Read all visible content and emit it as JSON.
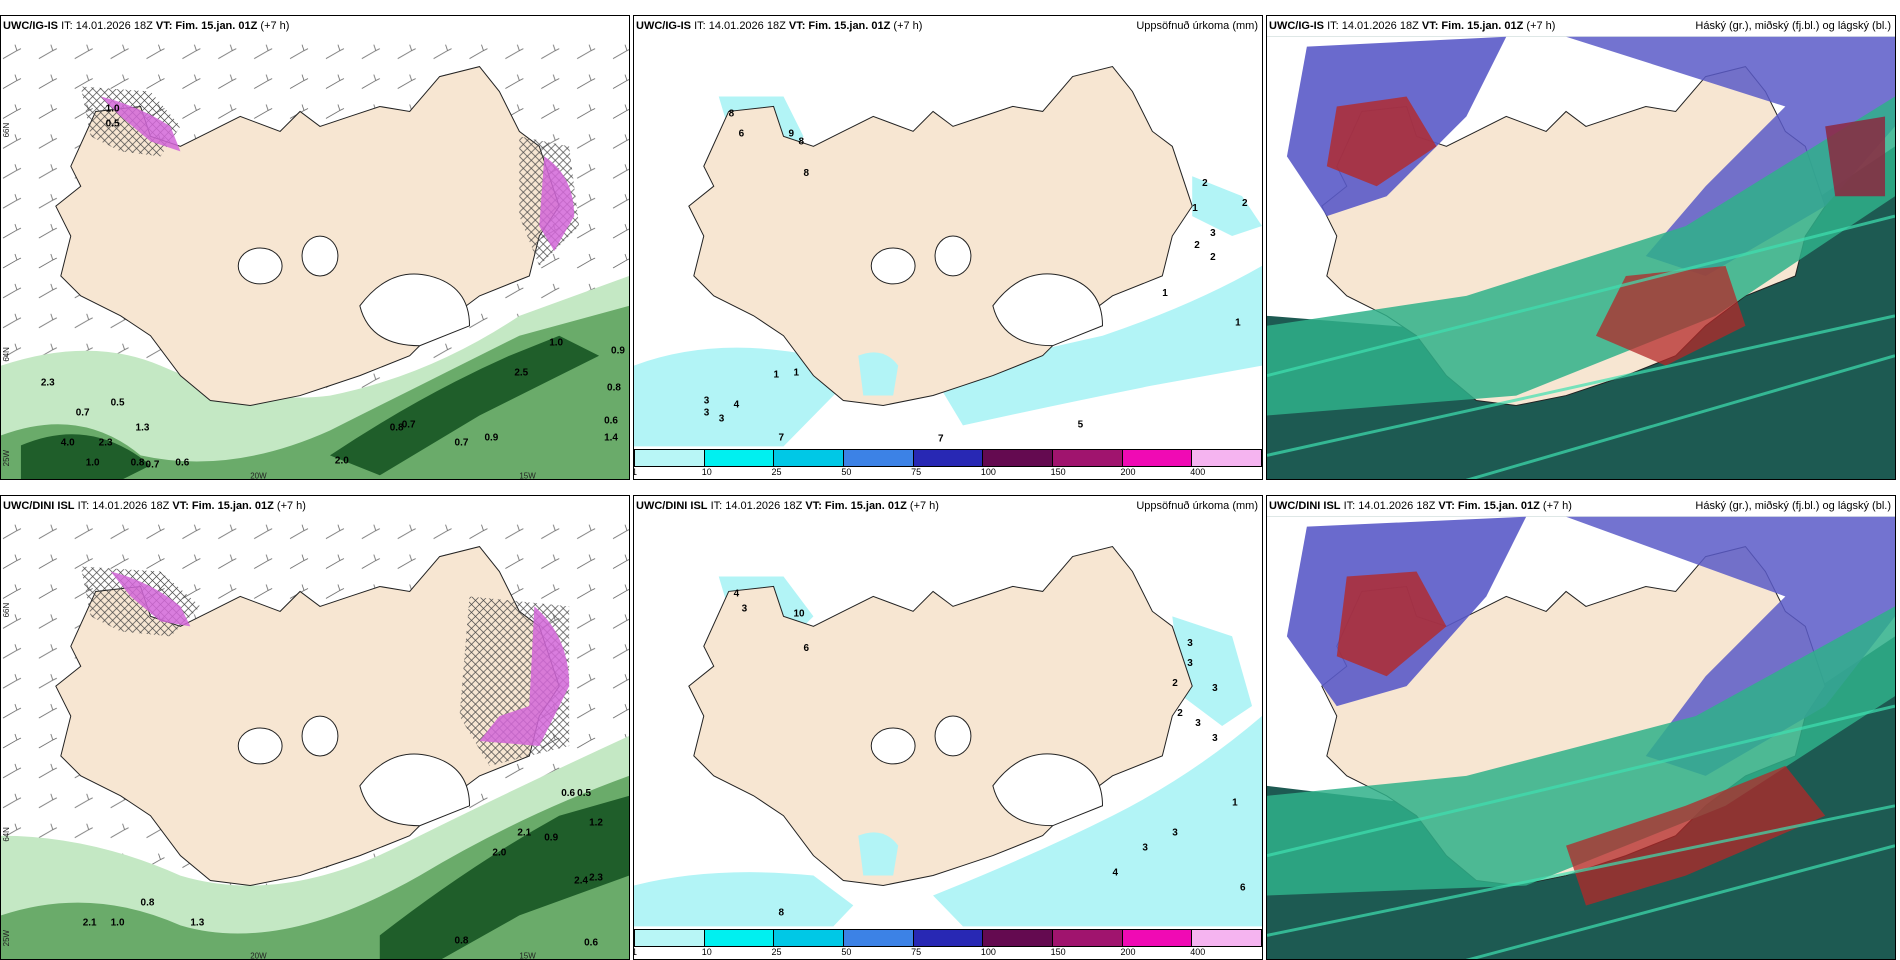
{
  "panels": [
    {
      "model": "UWC/IG-IS",
      "it": "IT: 14.01.2026 18Z",
      "vt_label": "VT:",
      "vt": "Fim. 15.jan. 01Z",
      "lead": "(+7 h)",
      "right": ""
    },
    {
      "model": "UWC/IG-IS",
      "it": "IT: 14.01.2026 18Z",
      "vt_label": "VT:",
      "vt": "Fim. 15.jan. 01Z",
      "lead": "(+7 h)",
      "right": "Uppsöfnuð úrkoma (mm)"
    },
    {
      "model": "UWC/IG-IS",
      "it": "IT: 14.01.2026 18Z",
      "vt_label": "VT:",
      "vt": "Fim. 15.jan. 01Z",
      "lead": "(+7 h)",
      "right": "Háský (gr.), miðský (fj.bl.) og lágský (bl.)"
    },
    {
      "model": "UWC/DINI ISL",
      "it": "IT: 14.01.2026 18Z",
      "vt_label": "VT:",
      "vt": "Fim. 15.jan. 01Z",
      "lead": "(+7 h)",
      "right": ""
    },
    {
      "model": "UWC/DINI ISL",
      "it": "IT: 14.01.2026 18Z",
      "vt_label": "VT:",
      "vt": "Fim. 15.jan. 01Z",
      "lead": "(+7 h)",
      "right": "Uppsöfnuð úrkoma (mm)"
    },
    {
      "model": "UWC/DINI ISL",
      "it": "IT: 14.01.2026 18Z",
      "vt_label": "VT:",
      "vt": "Fim. 15.jan. 01Z",
      "lead": "(+7 h)",
      "right": "Háský (gr.), miðský (fj.bl.) og lágský (bl.)"
    }
  ],
  "legend": {
    "colors": [
      "#b8f6f6",
      "#00f0f0",
      "#00c8e6",
      "#3c82e6",
      "#2828b4",
      "#640a50",
      "#a0146e",
      "#f00ab4",
      "#f5b4f0"
    ],
    "ticks": [
      "1",
      "10",
      "25",
      "50",
      "75",
      "100",
      "150",
      "200",
      "400"
    ]
  },
  "grid_labels": {
    "lat66": "66N",
    "lat64": "64N",
    "lon25": "25W",
    "lon20": "20W",
    "lon15": "15W"
  },
  "colors": {
    "land": "#f7e6d2",
    "precip_light": "#b2f4f6",
    "green_light": "#b8e6b8",
    "green_dark": "#1f5e2a",
    "purple": "#d266d8",
    "cloud_high": "#5a5ac8",
    "cloud_mid": "#2fb08a",
    "cloud_low": "#1d5a52",
    "cloud_red": "#b42828"
  },
  "wind_values": {
    "top": [
      "2.3",
      "0.5",
      "0.7",
      "4.0",
      "2.3",
      "1.3",
      "1.0",
      "0.8",
      "0.7",
      "0.6",
      "2.0",
      "0.8",
      "0.7",
      "0.7",
      "0.9",
      "1.0",
      "2.5",
      "0.9",
      "0.8",
      "0.6",
      "1.4",
      "1.0",
      "0.5"
    ],
    "bottom": [
      "0.8",
      "2.1",
      "1.0",
      "1.3",
      "0.8",
      "0.6",
      "0.5",
      "2.1",
      "0.9",
      "2.0",
      "2.4",
      "2.3",
      "1.2",
      "0.6"
    ]
  },
  "precip_values": {
    "top": [
      "8",
      "9",
      "8",
      "6",
      "8",
      "2",
      "1",
      "2",
      "3",
      "2",
      "2",
      "1",
      "1",
      "1",
      "1",
      "3",
      "3",
      "4",
      "3",
      "7",
      "7",
      "5"
    ],
    "bottom": [
      "4",
      "3",
      "10",
      "6",
      "3",
      "3",
      "2",
      "3",
      "2",
      "3",
      "3",
      "1",
      "3",
      "3",
      "4",
      "6",
      "8"
    ]
  }
}
